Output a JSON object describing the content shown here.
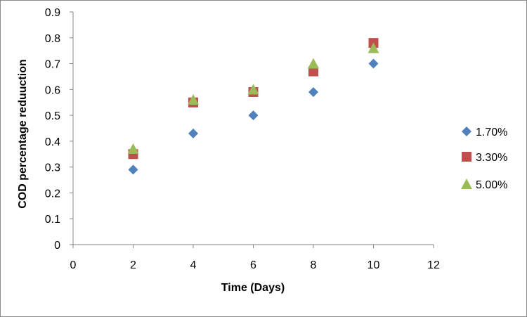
{
  "chart_data": {
    "type": "scatter",
    "title": "",
    "xlabel": "Time (Days)",
    "ylabel": "COD percentage reduuction",
    "xlim": [
      0,
      12
    ],
    "ylim": [
      0,
      0.9
    ],
    "xticks": [
      0,
      2,
      4,
      6,
      8,
      10,
      12
    ],
    "yticks": [
      0,
      0.1,
      0.2,
      0.3,
      0.4,
      0.5,
      0.6,
      0.7,
      0.8,
      0.9
    ],
    "xtick_labels": [
      "0",
      "2",
      "4",
      "6",
      "8",
      "10",
      "12"
    ],
    "ytick_labels": [
      "0",
      "0.1",
      "0.2",
      "0.3",
      "0.4",
      "0.5",
      "0.6",
      "0.7",
      "0.8",
      "0.9"
    ],
    "grid": false,
    "legend_position": "right",
    "series": [
      {
        "name": "1.70%",
        "marker": "diamond",
        "color": "#4F81BD",
        "x": [
          2,
          4,
          6,
          8,
          10
        ],
        "y": [
          0.29,
          0.43,
          0.5,
          0.59,
          0.7
        ]
      },
      {
        "name": "3.30%",
        "marker": "square",
        "color": "#C0504D",
        "x": [
          2,
          4,
          6,
          8,
          10
        ],
        "y": [
          0.35,
          0.55,
          0.59,
          0.67,
          0.78
        ]
      },
      {
        "name": "5.00%",
        "marker": "triangle",
        "color": "#9BBB59",
        "x": [
          2,
          4,
          6,
          8,
          10
        ],
        "y": [
          0.37,
          0.56,
          0.6,
          0.7,
          0.76
        ]
      }
    ]
  }
}
